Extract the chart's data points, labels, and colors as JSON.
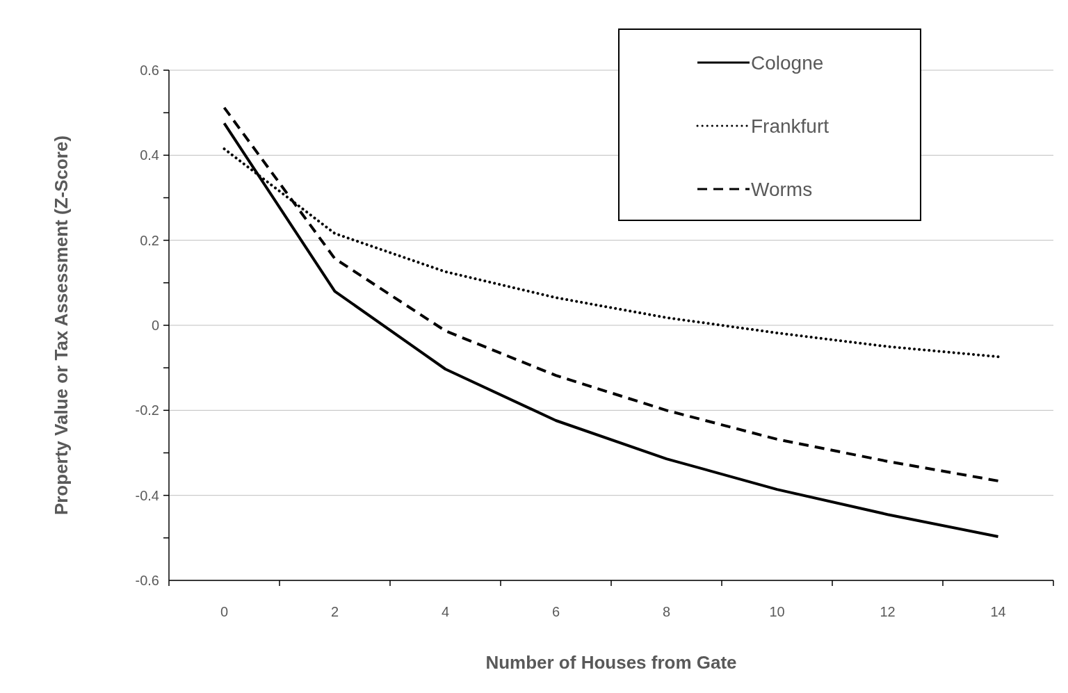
{
  "chart_data": {
    "type": "line",
    "xlabel": "Number of Houses from Gate",
    "ylabel": "Property Value or Tax Assessment (Z-Score)",
    "x": [
      0,
      2,
      4,
      6,
      8,
      10,
      12,
      14
    ],
    "series": [
      {
        "name": "Cologne",
        "color": "#000000",
        "line_style": "solid",
        "values": [
          0.475,
          0.08,
          -0.103,
          -0.224,
          -0.314,
          -0.386,
          -0.445,
          -0.497
        ]
      },
      {
        "name": "Frankfurt",
        "color": "#000000",
        "line_style": "dotted",
        "values": [
          0.415,
          0.216,
          0.126,
          0.065,
          0.018,
          -0.018,
          -0.05,
          -0.074
        ]
      },
      {
        "name": "Worms",
        "color": "#000000",
        "line_style": "dashed",
        "values": [
          0.512,
          0.157,
          -0.013,
          -0.118,
          -0.2,
          -0.268,
          -0.32,
          -0.366
        ]
      }
    ],
    "xlim": [
      -1,
      15
    ],
    "xticks": [
      {
        "value": -1,
        "label": null
      },
      0,
      {
        "value": 1,
        "label": null
      },
      2,
      {
        "value": 3,
        "label": null
      },
      4,
      {
        "value": 5,
        "label": null
      },
      6,
      {
        "value": 7,
        "label": null
      },
      8,
      {
        "value": 9,
        "label": null
      },
      10,
      {
        "value": 11,
        "label": null
      },
      12,
      {
        "value": 13,
        "label": null
      },
      14,
      {
        "value": 15,
        "label": null
      }
    ],
    "ylim": [
      -0.6,
      0.6
    ],
    "yticks": [
      -0.6,
      {
        "value": -0.5,
        "label": null
      },
      -0.4,
      {
        "value": -0.3,
        "label": null
      },
      -0.2,
      {
        "value": -0.1,
        "label": null
      },
      0,
      {
        "value": 0.1,
        "label": null
      },
      0.2,
      {
        "value": 0.3,
        "label": null
      },
      0.4,
      {
        "value": 0.5,
        "label": null
      },
      0.6
    ],
    "grid": "y",
    "legend": "top right",
    "marker": "none"
  }
}
